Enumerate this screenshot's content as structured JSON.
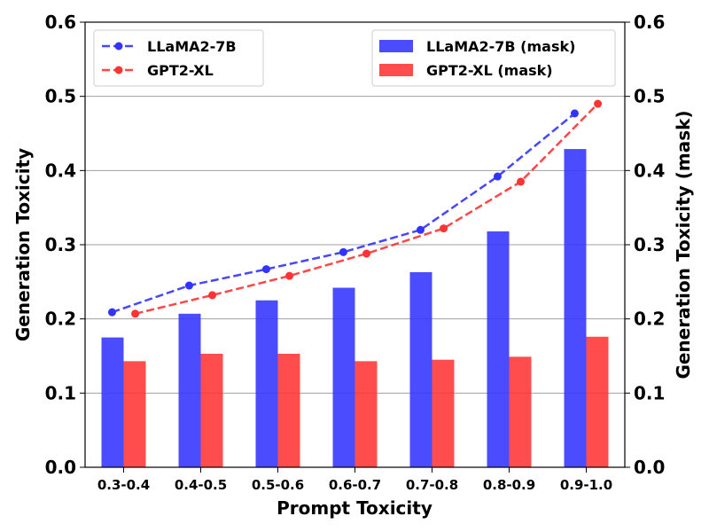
{
  "chart_data": {
    "type": "bar+line",
    "categories": [
      "0.3-0.4",
      "0.4-0.5",
      "0.5-0.6",
      "0.6-0.7",
      "0.7-0.8",
      "0.8-0.9",
      "0.9-1.0"
    ],
    "xlabel": "Prompt Toxicity",
    "ylabel_left": "Generation Toxicity",
    "ylabel_right": "Generation Toxicity (mask)",
    "ylim": [
      0,
      0.6
    ],
    "yticks": [
      "0.0",
      "0.1",
      "0.2",
      "0.3",
      "0.4",
      "0.5",
      "0.6"
    ],
    "grid": "horizontal",
    "line_series": [
      {
        "name": "LLaMA2-7B",
        "color": "#3333ff",
        "values": [
          0.209,
          0.245,
          0.267,
          0.29,
          0.32,
          0.392,
          0.477
        ]
      },
      {
        "name": "GPT2-XL",
        "color": "#ff3333",
        "values": [
          0.207,
          0.232,
          0.258,
          0.288,
          0.322,
          0.385,
          0.49
        ]
      }
    ],
    "bar_series": [
      {
        "name": "LLaMA2-7B (mask)",
        "color": "#3333ff",
        "values": [
          0.175,
          0.207,
          0.225,
          0.242,
          0.263,
          0.318,
          0.429
        ]
      },
      {
        "name": "GPT2-XL (mask)",
        "color": "#ff3333",
        "values": [
          0.143,
          0.153,
          0.153,
          0.143,
          0.145,
          0.149,
          0.176
        ]
      }
    ],
    "legend_left_position": "top-left",
    "legend_right_position": "top-right"
  }
}
